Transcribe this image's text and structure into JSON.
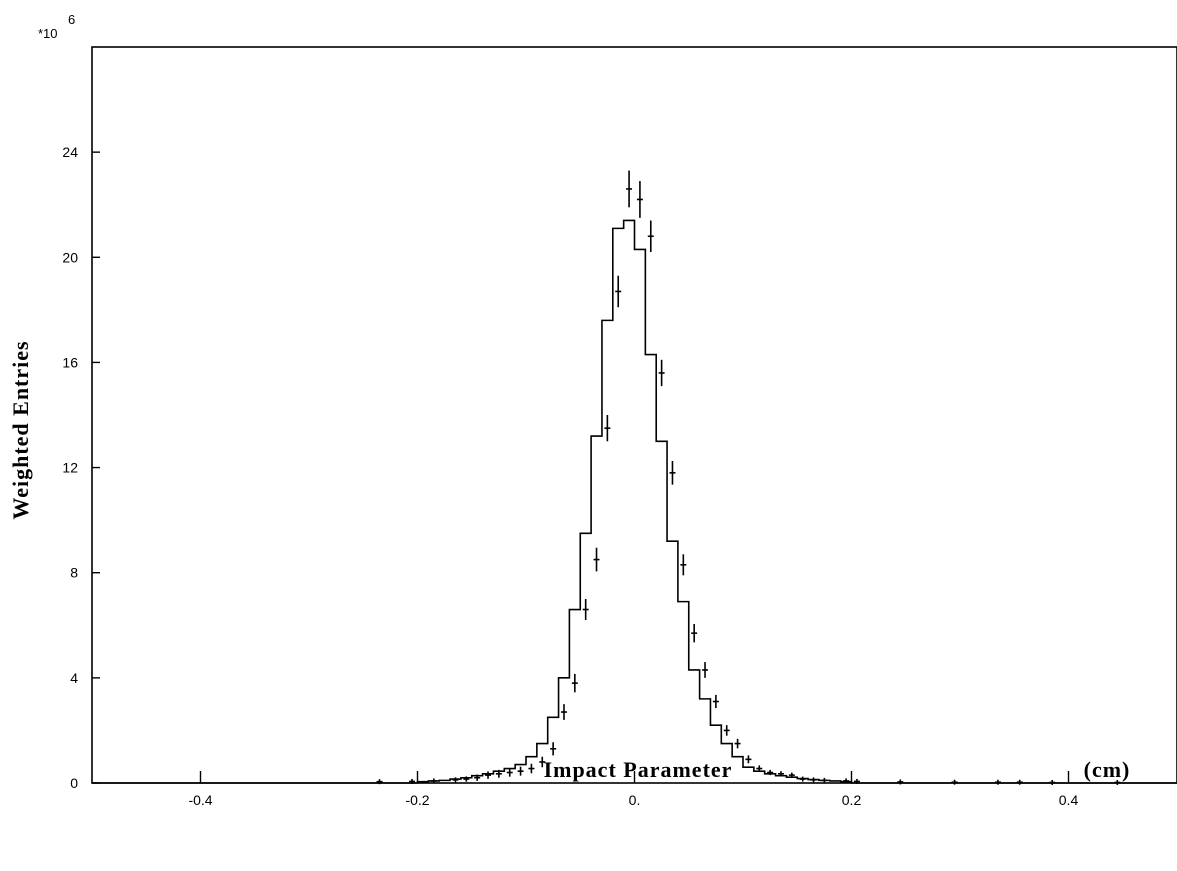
{
  "chart_data": {
    "type": "histogram",
    "title": "",
    "xlabel": "Impact Parameter",
    "xunit": "(cm)",
    "ylabel": "Weighted Entries",
    "y_multiplier_prefix": "*10",
    "y_multiplier_exponent": "6",
    "xlim": [
      -0.5,
      0.5
    ],
    "ylim": [
      0,
      28
    ],
    "x_ticks": [
      -0.4,
      -0.2,
      0.0,
      0.2,
      0.4
    ],
    "x_tick_labels": [
      "-0.4",
      "-0.2",
      "0.",
      "0.2",
      "0.4"
    ],
    "y_ticks": [
      0,
      4,
      8,
      12,
      16,
      20,
      24
    ],
    "y_tick_labels": [
      "0",
      "4",
      "8",
      "12",
      "16",
      "20",
      "24"
    ],
    "bin_width": 0.01,
    "grid": false,
    "legend": "none",
    "series": [
      {
        "kind": "histogram",
        "bin_edges": [
          -0.2,
          -0.19,
          -0.18,
          -0.17,
          -0.16,
          -0.15,
          -0.14,
          -0.13,
          -0.12,
          -0.11,
          -0.1,
          -0.09,
          -0.08,
          -0.07,
          -0.06,
          -0.05,
          -0.04,
          -0.03,
          -0.02,
          -0.01,
          0.0,
          0.01,
          0.02,
          0.03,
          0.04,
          0.05,
          0.06,
          0.07,
          0.08,
          0.09,
          0.1,
          0.11,
          0.12,
          0.13,
          0.14,
          0.15,
          0.16,
          0.17,
          0.18,
          0.19,
          0.2
        ],
        "values": [
          0.05,
          0.08,
          0.1,
          0.15,
          0.2,
          0.28,
          0.35,
          0.45,
          0.55,
          0.7,
          1.0,
          1.5,
          2.5,
          4.0,
          6.6,
          9.5,
          13.2,
          17.6,
          21.1,
          21.4,
          20.3,
          16.3,
          13.0,
          9.2,
          6.9,
          4.3,
          3.2,
          2.2,
          1.5,
          1.0,
          0.6,
          0.45,
          0.35,
          0.28,
          0.22,
          0.17,
          0.13,
          0.1,
          0.08,
          0.05
        ]
      },
      {
        "kind": "points_with_errors",
        "x": [
          -0.235,
          -0.205,
          -0.185,
          -0.165,
          -0.155,
          -0.145,
          -0.135,
          -0.125,
          -0.115,
          -0.105,
          -0.095,
          -0.085,
          -0.075,
          -0.065,
          -0.055,
          -0.045,
          -0.035,
          -0.025,
          -0.015,
          -0.005,
          0.005,
          0.015,
          0.025,
          0.035,
          0.045,
          0.055,
          0.065,
          0.075,
          0.085,
          0.095,
          0.105,
          0.115,
          0.125,
          0.135,
          0.145,
          0.155,
          0.165,
          0.175,
          0.195,
          0.205,
          0.245,
          0.295,
          0.335,
          0.355,
          0.385,
          0.445
        ],
        "y": [
          0.05,
          0.06,
          0.08,
          0.12,
          0.15,
          0.2,
          0.3,
          0.35,
          0.4,
          0.45,
          0.55,
          0.8,
          1.3,
          2.7,
          3.8,
          6.6,
          8.5,
          13.5,
          18.7,
          22.6,
          22.2,
          20.8,
          15.6,
          11.8,
          8.3,
          5.7,
          4.3,
          3.1,
          2.0,
          1.5,
          0.9,
          0.55,
          0.4,
          0.35,
          0.3,
          0.15,
          0.12,
          0.1,
          0.08,
          0.06,
          0.04,
          0.03,
          0.03,
          0.03,
          0.02,
          0.02
        ],
        "yerr": [
          0.05,
          0.05,
          0.06,
          0.08,
          0.1,
          0.12,
          0.14,
          0.15,
          0.16,
          0.17,
          0.18,
          0.2,
          0.25,
          0.3,
          0.35,
          0.4,
          0.45,
          0.5,
          0.6,
          0.7,
          0.7,
          0.6,
          0.5,
          0.45,
          0.4,
          0.35,
          0.3,
          0.25,
          0.2,
          0.18,
          0.15,
          0.12,
          0.1,
          0.1,
          0.09,
          0.08,
          0.07,
          0.06,
          0.05,
          0.05,
          0.04,
          0.03,
          0.03,
          0.03,
          0.02,
          0.02
        ]
      }
    ]
  }
}
